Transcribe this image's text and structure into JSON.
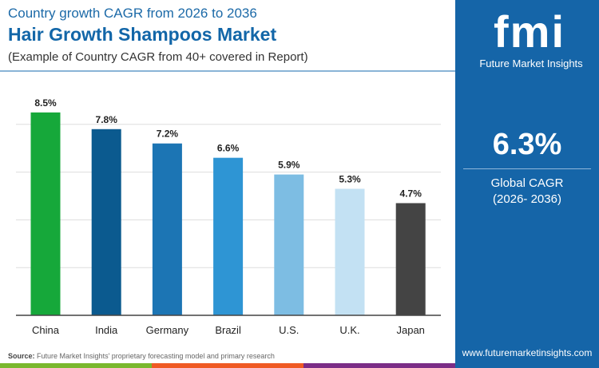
{
  "header": {
    "subtitle": "Country growth CAGR from 2026 to 2036",
    "title": "Hair Growth Shampoos Market",
    "note": "(Example of Country CAGR from 40+ covered in Report)"
  },
  "sidebar": {
    "logo_text": "fmi",
    "brand": "Future Market Insights",
    "global_value": "6.3%",
    "global_label": "Global CAGR",
    "global_period": "(2026- 2036)",
    "website": "www.futuremarketinsights.com"
  },
  "footer": {
    "source_label": "Source:",
    "source_text": "Future Market Insights' proprietary forecasting model and primary research"
  },
  "colors": {
    "brand": "#1565a8",
    "stripes": [
      "#7ab82e",
      "#ef5a24",
      "#7b2d86"
    ]
  },
  "chart_data": {
    "type": "bar",
    "categories": [
      "China",
      "India",
      "Germany",
      "Brazil",
      "U.S.",
      "U.K.",
      "Japan"
    ],
    "values": [
      8.5,
      7.8,
      7.2,
      6.6,
      5.9,
      5.3,
      4.7
    ],
    "labels": [
      "8.5%",
      "7.8%",
      "7.2%",
      "6.6%",
      "5.9%",
      "5.3%",
      "4.7%"
    ],
    "colors": [
      "#16a83a",
      "#0b5a8f",
      "#1c75b4",
      "#2e95d4",
      "#7dbde3",
      "#c3e1f3",
      "#444444"
    ],
    "ylim": [
      0,
      10
    ],
    "grid": true
  }
}
